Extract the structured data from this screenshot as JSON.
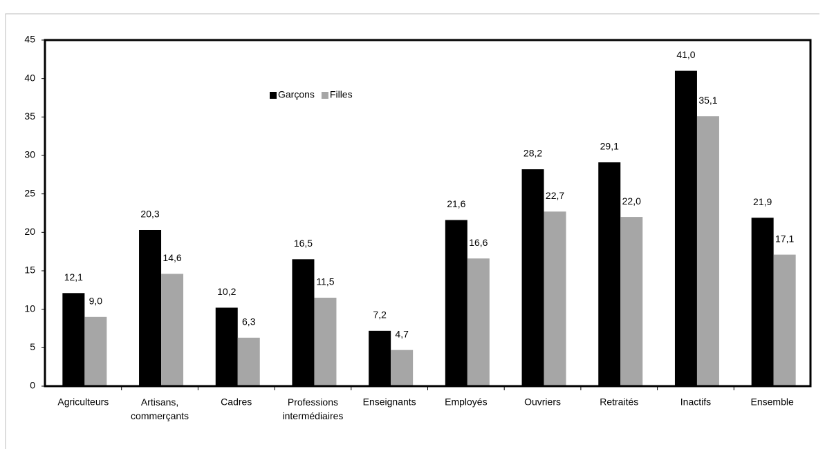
{
  "chart_data": {
    "type": "bar",
    "categories": [
      "Agriculteurs",
      "Artisans, commerçants",
      "Cadres",
      "Professions intermédiaires",
      "Enseignants",
      "Employés",
      "Ouvriers",
      "Retraités",
      "Inactifs",
      "Ensemble"
    ],
    "series": [
      {
        "name": "Garçons",
        "color": "#000000",
        "values": [
          12.1,
          20.3,
          10.2,
          16.5,
          7.2,
          21.6,
          28.2,
          29.1,
          41.0,
          21.9
        ],
        "value_labels": [
          "12,1",
          "20,3",
          "10,2",
          "16,5",
          "7,2",
          "21,6",
          "28,2",
          "29,1",
          "41,0",
          "21,9"
        ]
      },
      {
        "name": "Filles",
        "color": "#a6a6a6",
        "values": [
          9.0,
          14.6,
          6.3,
          11.5,
          4.7,
          16.6,
          22.7,
          22.0,
          35.1,
          17.1
        ],
        "value_labels": [
          "9,0",
          "14,6",
          "6,3",
          "11,5",
          "4,7",
          "16,6",
          "22,7",
          "22,0",
          "35,1",
          "17,1"
        ]
      }
    ],
    "ylim": [
      0,
      45
    ],
    "yticks": [
      0,
      5,
      10,
      15,
      20,
      25,
      30,
      35,
      40,
      45
    ],
    "grid": false,
    "legend": "top-left"
  }
}
